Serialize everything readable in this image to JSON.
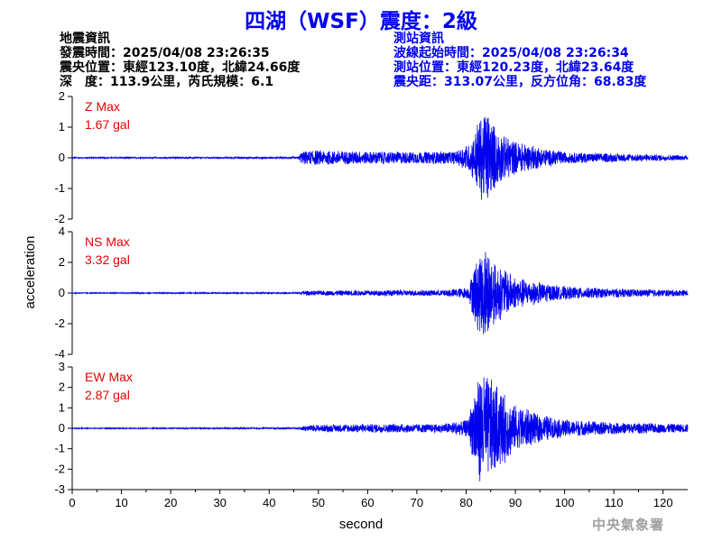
{
  "title": "四湖（WSF）震度：2級",
  "event_info": {
    "heading": "地震資訊",
    "origin_time": "發震時間：2025/04/08 23:26:35",
    "epicenter": "震央位置：東經123.10度，北緯24.66度",
    "depth_magnitude": "深　度：113.9公里，芮氏規模：6.1"
  },
  "station_info": {
    "heading": "測站資訊",
    "wave_start": "波線起始時間：2025/04/08 23:26:34",
    "station_location": "測站位置：東經120.23度，北緯23.64度",
    "distance_azimuth": "震央距：313.07公里，反方位角：68.83度"
  },
  "credit": "中央氣象署",
  "colors": {
    "trace": "#0000ee",
    "max_label": "#e60000",
    "title": "#0000ee"
  },
  "chart_data": {
    "type": "line",
    "xlabel": "second",
    "ylabel": "acceleration",
    "xlim": [
      0,
      125
    ],
    "x_ticks": [
      0,
      10,
      20,
      30,
      40,
      50,
      60,
      70,
      80,
      90,
      100,
      110,
      120
    ],
    "grid": false,
    "panels": [
      {
        "component": "Z",
        "max_label": "Z Max",
        "max_value": "1.67 gal",
        "ylim": [
          -2,
          2
        ],
        "y_ticks": [
          -2,
          -1,
          0,
          1,
          2
        ],
        "envelope": [
          [
            0,
            0.02
          ],
          [
            46,
            0.03
          ],
          [
            46.5,
            0.22
          ],
          [
            50,
            0.25
          ],
          [
            60,
            0.22
          ],
          [
            70,
            0.2
          ],
          [
            78,
            0.22
          ],
          [
            81,
            0.55
          ],
          [
            82.5,
            1.3
          ],
          [
            84,
            1.67
          ],
          [
            86,
            1.0
          ],
          [
            90,
            0.55
          ],
          [
            95,
            0.35
          ],
          [
            100,
            0.2
          ],
          [
            110,
            0.14
          ],
          [
            125,
            0.08
          ]
        ]
      },
      {
        "component": "NS",
        "max_label": "NS Max",
        "max_value": "3.32 gal",
        "ylim": [
          -4,
          4
        ],
        "y_ticks": [
          -4,
          -2,
          0,
          2,
          4
        ],
        "envelope": [
          [
            0,
            0.03
          ],
          [
            46,
            0.05
          ],
          [
            47,
            0.15
          ],
          [
            55,
            0.18
          ],
          [
            65,
            0.2
          ],
          [
            75,
            0.2
          ],
          [
            80.5,
            0.4
          ],
          [
            82,
            2.4
          ],
          [
            84,
            3.32
          ],
          [
            86,
            2.0
          ],
          [
            90,
            1.1
          ],
          [
            95,
            0.7
          ],
          [
            100,
            0.45
          ],
          [
            110,
            0.3
          ],
          [
            125,
            0.2
          ]
        ]
      },
      {
        "component": "EW",
        "max_label": "EW Max",
        "max_value": "2.87 gal",
        "ylim": [
          -3,
          3
        ],
        "y_ticks": [
          -3,
          -2,
          -1,
          0,
          1,
          2,
          3
        ],
        "envelope": [
          [
            0,
            0.02
          ],
          [
            46,
            0.04
          ],
          [
            47,
            0.15
          ],
          [
            55,
            0.2
          ],
          [
            65,
            0.22
          ],
          [
            75,
            0.22
          ],
          [
            80.5,
            0.45
          ],
          [
            82,
            2.6
          ],
          [
            83.5,
            2.87
          ],
          [
            86,
            2.2
          ],
          [
            90,
            1.2
          ],
          [
            95,
            0.7
          ],
          [
            100,
            0.45
          ],
          [
            110,
            0.3
          ],
          [
            125,
            0.22
          ]
        ]
      }
    ]
  }
}
